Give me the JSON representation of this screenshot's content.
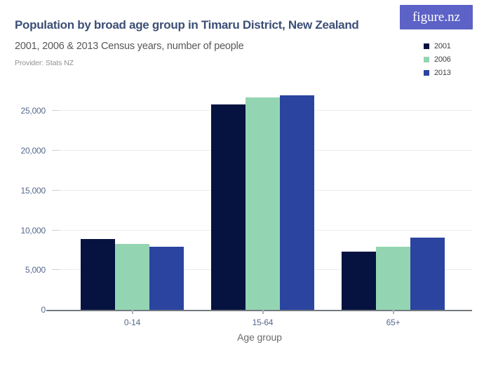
{
  "header": {
    "title": "Population by broad age group in Timaru District, New Zealand",
    "subtitle": "2001, 2006 & 2013 Census years, number of people",
    "provider": "Provider: Stats NZ",
    "logo_text": "figure.nz"
  },
  "colors": {
    "logo_bg": "#5c62c6",
    "title_text": "#3c4f76",
    "axis_label_text": "#55688c",
    "series_2001": "#06123f",
    "series_2006": "#93d5b2",
    "series_2013": "#2a449f"
  },
  "chart_data": {
    "type": "bar",
    "title": "Population by broad age group in Timaru District, New Zealand",
    "subtitle": "2001, 2006 & 2013 Census years, number of people",
    "categories": [
      "0-14",
      "15-64",
      "65+"
    ],
    "series": [
      {
        "name": "2001",
        "color": "#06123f",
        "values": [
          8870,
          25850,
          7360
        ]
      },
      {
        "name": "2006",
        "color": "#93d5b2",
        "values": [
          8330,
          26700,
          7920
        ]
      },
      {
        "name": "2013",
        "color": "#2a449f",
        "values": [
          7980,
          27000,
          9040
        ]
      }
    ],
    "xlabel": "Age group",
    "ylabel": "",
    "y_ticks": [
      0,
      5000,
      10000,
      15000,
      20000,
      25000
    ],
    "y_tick_labels": [
      "0",
      "5,000",
      "10,000",
      "15,000",
      "20,000",
      "25,000"
    ],
    "ylim": [
      0,
      27500
    ],
    "grid": "horizontal",
    "legend_position": "top-right"
  }
}
